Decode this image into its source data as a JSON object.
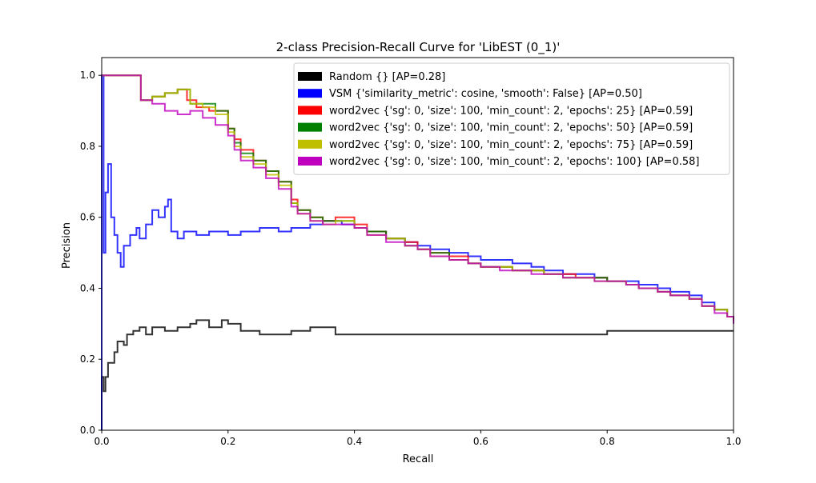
{
  "chart_data": {
    "type": "line",
    "title": "2-class Precision-Recall Curve for 'LibEST (0_1)'",
    "xlabel": "Recall",
    "ylabel": "Precision",
    "xlim": [
      0.0,
      1.0
    ],
    "ylim": [
      0.0,
      1.05
    ],
    "xticks": [
      "0.0",
      "0.2",
      "0.4",
      "0.6",
      "0.8",
      "1.0"
    ],
    "yticks": [
      "0.0",
      "0.2",
      "0.4",
      "0.6",
      "0.8",
      "1.0"
    ],
    "grid": false,
    "legend_position": "upper-right",
    "step": true,
    "series": [
      {
        "name": "Random {} [AP=0.28]",
        "color": "#000000",
        "points": [
          [
            0.0,
            0.0
          ],
          [
            0.0,
            0.15
          ],
          [
            0.003,
            0.11
          ],
          [
            0.006,
            0.15
          ],
          [
            0.01,
            0.19
          ],
          [
            0.02,
            0.22
          ],
          [
            0.025,
            0.25
          ],
          [
            0.035,
            0.24
          ],
          [
            0.04,
            0.27
          ],
          [
            0.05,
            0.28
          ],
          [
            0.06,
            0.29
          ],
          [
            0.07,
            0.27
          ],
          [
            0.08,
            0.29
          ],
          [
            0.1,
            0.28
          ],
          [
            0.12,
            0.29
          ],
          [
            0.14,
            0.3
          ],
          [
            0.15,
            0.31
          ],
          [
            0.17,
            0.29
          ],
          [
            0.19,
            0.31
          ],
          [
            0.2,
            0.3
          ],
          [
            0.22,
            0.28
          ],
          [
            0.25,
            0.27
          ],
          [
            0.28,
            0.27
          ],
          [
            0.3,
            0.28
          ],
          [
            0.33,
            0.29
          ],
          [
            0.36,
            0.29
          ],
          [
            0.37,
            0.27
          ],
          [
            0.42,
            0.27
          ],
          [
            0.45,
            0.27
          ],
          [
            0.5,
            0.27
          ],
          [
            0.55,
            0.27
          ],
          [
            0.6,
            0.27
          ],
          [
            0.65,
            0.27
          ],
          [
            0.7,
            0.27
          ],
          [
            0.75,
            0.27
          ],
          [
            0.8,
            0.28
          ],
          [
            0.85,
            0.28
          ],
          [
            0.9,
            0.28
          ],
          [
            0.95,
            0.28
          ],
          [
            1.0,
            0.28
          ]
        ]
      },
      {
        "name": "VSM {'similarity_metric': cosine, 'smooth': False} [AP=0.50]",
        "color": "#0000ff",
        "points": [
          [
            0.0,
            0.0
          ],
          [
            0.0,
            1.0
          ],
          [
            0.003,
            0.5
          ],
          [
            0.006,
            0.67
          ],
          [
            0.01,
            0.75
          ],
          [
            0.015,
            0.6
          ],
          [
            0.02,
            0.55
          ],
          [
            0.025,
            0.5
          ],
          [
            0.03,
            0.46
          ],
          [
            0.035,
            0.52
          ],
          [
            0.045,
            0.55
          ],
          [
            0.055,
            0.57
          ],
          [
            0.06,
            0.54
          ],
          [
            0.07,
            0.58
          ],
          [
            0.08,
            0.62
          ],
          [
            0.09,
            0.6
          ],
          [
            0.1,
            0.63
          ],
          [
            0.105,
            0.65
          ],
          [
            0.11,
            0.56
          ],
          [
            0.12,
            0.54
          ],
          [
            0.13,
            0.56
          ],
          [
            0.15,
            0.55
          ],
          [
            0.17,
            0.56
          ],
          [
            0.2,
            0.55
          ],
          [
            0.22,
            0.56
          ],
          [
            0.25,
            0.57
          ],
          [
            0.28,
            0.56
          ],
          [
            0.3,
            0.57
          ],
          [
            0.33,
            0.58
          ],
          [
            0.35,
            0.59
          ],
          [
            0.38,
            0.58
          ],
          [
            0.4,
            0.57
          ],
          [
            0.42,
            0.56
          ],
          [
            0.45,
            0.54
          ],
          [
            0.48,
            0.53
          ],
          [
            0.5,
            0.52
          ],
          [
            0.52,
            0.51
          ],
          [
            0.55,
            0.5
          ],
          [
            0.58,
            0.49
          ],
          [
            0.6,
            0.48
          ],
          [
            0.63,
            0.48
          ],
          [
            0.65,
            0.47
          ],
          [
            0.68,
            0.46
          ],
          [
            0.7,
            0.45
          ],
          [
            0.73,
            0.44
          ],
          [
            0.75,
            0.44
          ],
          [
            0.78,
            0.43
          ],
          [
            0.8,
            0.42
          ],
          [
            0.83,
            0.42
          ],
          [
            0.85,
            0.41
          ],
          [
            0.88,
            0.4
          ],
          [
            0.9,
            0.39
          ],
          [
            0.93,
            0.38
          ],
          [
            0.95,
            0.36
          ],
          [
            0.97,
            0.34
          ],
          [
            0.99,
            0.32
          ],
          [
            1.0,
            0.31
          ]
        ]
      },
      {
        "name": "word2vec {'sg': 0, 'size': 100, 'min_count': 2, 'epochs': 25} [AP=0.59]",
        "color": "#ff0000",
        "points": [
          [
            0.0,
            1.0
          ],
          [
            0.062,
            1.0
          ],
          [
            0.062,
            0.93
          ],
          [
            0.08,
            0.94
          ],
          [
            0.1,
            0.95
          ],
          [
            0.12,
            0.96
          ],
          [
            0.135,
            0.93
          ],
          [
            0.15,
            0.91
          ],
          [
            0.17,
            0.9
          ],
          [
            0.2,
            0.85
          ],
          [
            0.21,
            0.82
          ],
          [
            0.22,
            0.79
          ],
          [
            0.24,
            0.76
          ],
          [
            0.26,
            0.73
          ],
          [
            0.28,
            0.7
          ],
          [
            0.3,
            0.65
          ],
          [
            0.31,
            0.62
          ],
          [
            0.33,
            0.6
          ],
          [
            0.35,
            0.59
          ],
          [
            0.37,
            0.6
          ],
          [
            0.4,
            0.58
          ],
          [
            0.42,
            0.56
          ],
          [
            0.45,
            0.54
          ],
          [
            0.48,
            0.53
          ],
          [
            0.5,
            0.51
          ],
          [
            0.52,
            0.5
          ],
          [
            0.55,
            0.49
          ],
          [
            0.58,
            0.47
          ],
          [
            0.6,
            0.46
          ],
          [
            0.63,
            0.46
          ],
          [
            0.65,
            0.45
          ],
          [
            0.68,
            0.45
          ],
          [
            0.7,
            0.44
          ],
          [
            0.73,
            0.44
          ],
          [
            0.75,
            0.43
          ],
          [
            0.78,
            0.43
          ],
          [
            0.8,
            0.42
          ],
          [
            0.83,
            0.41
          ],
          [
            0.85,
            0.4
          ],
          [
            0.88,
            0.39
          ],
          [
            0.9,
            0.38
          ],
          [
            0.93,
            0.37
          ],
          [
            0.95,
            0.35
          ],
          [
            0.97,
            0.34
          ],
          [
            0.99,
            0.32
          ],
          [
            1.0,
            0.31
          ]
        ]
      },
      {
        "name": "word2vec {'sg': 0, 'size': 100, 'min_count': 2, 'epochs': 50} [AP=0.59]",
        "color": "#008000",
        "points": [
          [
            0.0,
            1.0
          ],
          [
            0.062,
            1.0
          ],
          [
            0.062,
            0.93
          ],
          [
            0.08,
            0.94
          ],
          [
            0.1,
            0.95
          ],
          [
            0.12,
            0.96
          ],
          [
            0.14,
            0.92
          ],
          [
            0.16,
            0.92
          ],
          [
            0.18,
            0.9
          ],
          [
            0.2,
            0.85
          ],
          [
            0.21,
            0.81
          ],
          [
            0.22,
            0.78
          ],
          [
            0.24,
            0.76
          ],
          [
            0.26,
            0.73
          ],
          [
            0.28,
            0.7
          ],
          [
            0.3,
            0.64
          ],
          [
            0.31,
            0.62
          ],
          [
            0.33,
            0.6
          ],
          [
            0.35,
            0.59
          ],
          [
            0.37,
            0.59
          ],
          [
            0.4,
            0.57
          ],
          [
            0.42,
            0.56
          ],
          [
            0.45,
            0.54
          ],
          [
            0.48,
            0.52
          ],
          [
            0.5,
            0.51
          ],
          [
            0.52,
            0.5
          ],
          [
            0.55,
            0.48
          ],
          [
            0.58,
            0.47
          ],
          [
            0.6,
            0.46
          ],
          [
            0.63,
            0.46
          ],
          [
            0.65,
            0.45
          ],
          [
            0.68,
            0.45
          ],
          [
            0.7,
            0.44
          ],
          [
            0.73,
            0.43
          ],
          [
            0.75,
            0.43
          ],
          [
            0.78,
            0.43
          ],
          [
            0.8,
            0.42
          ],
          [
            0.83,
            0.41
          ],
          [
            0.85,
            0.4
          ],
          [
            0.88,
            0.39
          ],
          [
            0.9,
            0.38
          ],
          [
            0.93,
            0.37
          ],
          [
            0.95,
            0.35
          ],
          [
            0.97,
            0.34
          ],
          [
            0.99,
            0.32
          ],
          [
            1.0,
            0.31
          ]
        ]
      },
      {
        "name": "word2vec {'sg': 0, 'size': 100, 'min_count': 2, 'epochs': 75} [AP=0.59]",
        "color": "#bfbf00",
        "points": [
          [
            0.0,
            1.0
          ],
          [
            0.062,
            1.0
          ],
          [
            0.062,
            0.93
          ],
          [
            0.08,
            0.94
          ],
          [
            0.1,
            0.95
          ],
          [
            0.12,
            0.96
          ],
          [
            0.14,
            0.92
          ],
          [
            0.16,
            0.91
          ],
          [
            0.18,
            0.89
          ],
          [
            0.2,
            0.84
          ],
          [
            0.21,
            0.8
          ],
          [
            0.22,
            0.77
          ],
          [
            0.24,
            0.75
          ],
          [
            0.26,
            0.72
          ],
          [
            0.28,
            0.69
          ],
          [
            0.3,
            0.64
          ],
          [
            0.31,
            0.61
          ],
          [
            0.33,
            0.59
          ],
          [
            0.35,
            0.58
          ],
          [
            0.37,
            0.59
          ],
          [
            0.4,
            0.57
          ],
          [
            0.42,
            0.55
          ],
          [
            0.45,
            0.54
          ],
          [
            0.48,
            0.52
          ],
          [
            0.5,
            0.51
          ],
          [
            0.52,
            0.49
          ],
          [
            0.55,
            0.48
          ],
          [
            0.58,
            0.47
          ],
          [
            0.6,
            0.46
          ],
          [
            0.63,
            0.46
          ],
          [
            0.65,
            0.45
          ],
          [
            0.68,
            0.45
          ],
          [
            0.7,
            0.44
          ],
          [
            0.73,
            0.43
          ],
          [
            0.75,
            0.43
          ],
          [
            0.78,
            0.42
          ],
          [
            0.8,
            0.42
          ],
          [
            0.83,
            0.41
          ],
          [
            0.85,
            0.4
          ],
          [
            0.88,
            0.39
          ],
          [
            0.9,
            0.38
          ],
          [
            0.93,
            0.37
          ],
          [
            0.95,
            0.35
          ],
          [
            0.97,
            0.34
          ],
          [
            0.99,
            0.32
          ],
          [
            1.0,
            0.31
          ]
        ]
      },
      {
        "name": "word2vec {'sg': 0, 'size': 100, 'min_count': 2, 'epochs': 100} [AP=0.58]",
        "color": "#bf00bf",
        "points": [
          [
            0.0,
            1.0
          ],
          [
            0.062,
            1.0
          ],
          [
            0.062,
            0.93
          ],
          [
            0.08,
            0.92
          ],
          [
            0.1,
            0.9
          ],
          [
            0.12,
            0.89
          ],
          [
            0.14,
            0.9
          ],
          [
            0.16,
            0.88
          ],
          [
            0.18,
            0.86
          ],
          [
            0.2,
            0.83
          ],
          [
            0.21,
            0.79
          ],
          [
            0.22,
            0.76
          ],
          [
            0.24,
            0.74
          ],
          [
            0.26,
            0.71
          ],
          [
            0.28,
            0.68
          ],
          [
            0.3,
            0.63
          ],
          [
            0.31,
            0.61
          ],
          [
            0.33,
            0.59
          ],
          [
            0.35,
            0.58
          ],
          [
            0.37,
            0.58
          ],
          [
            0.4,
            0.57
          ],
          [
            0.42,
            0.55
          ],
          [
            0.45,
            0.53
          ],
          [
            0.48,
            0.52
          ],
          [
            0.5,
            0.51
          ],
          [
            0.52,
            0.49
          ],
          [
            0.55,
            0.48
          ],
          [
            0.58,
            0.47
          ],
          [
            0.6,
            0.46
          ],
          [
            0.63,
            0.45
          ],
          [
            0.65,
            0.45
          ],
          [
            0.68,
            0.44
          ],
          [
            0.7,
            0.44
          ],
          [
            0.73,
            0.43
          ],
          [
            0.75,
            0.43
          ],
          [
            0.78,
            0.42
          ],
          [
            0.8,
            0.42
          ],
          [
            0.83,
            0.41
          ],
          [
            0.85,
            0.4
          ],
          [
            0.88,
            0.39
          ],
          [
            0.9,
            0.38
          ],
          [
            0.93,
            0.37
          ],
          [
            0.95,
            0.35
          ],
          [
            0.97,
            0.33
          ],
          [
            0.99,
            0.32
          ],
          [
            1.0,
            0.3
          ]
        ]
      }
    ]
  }
}
